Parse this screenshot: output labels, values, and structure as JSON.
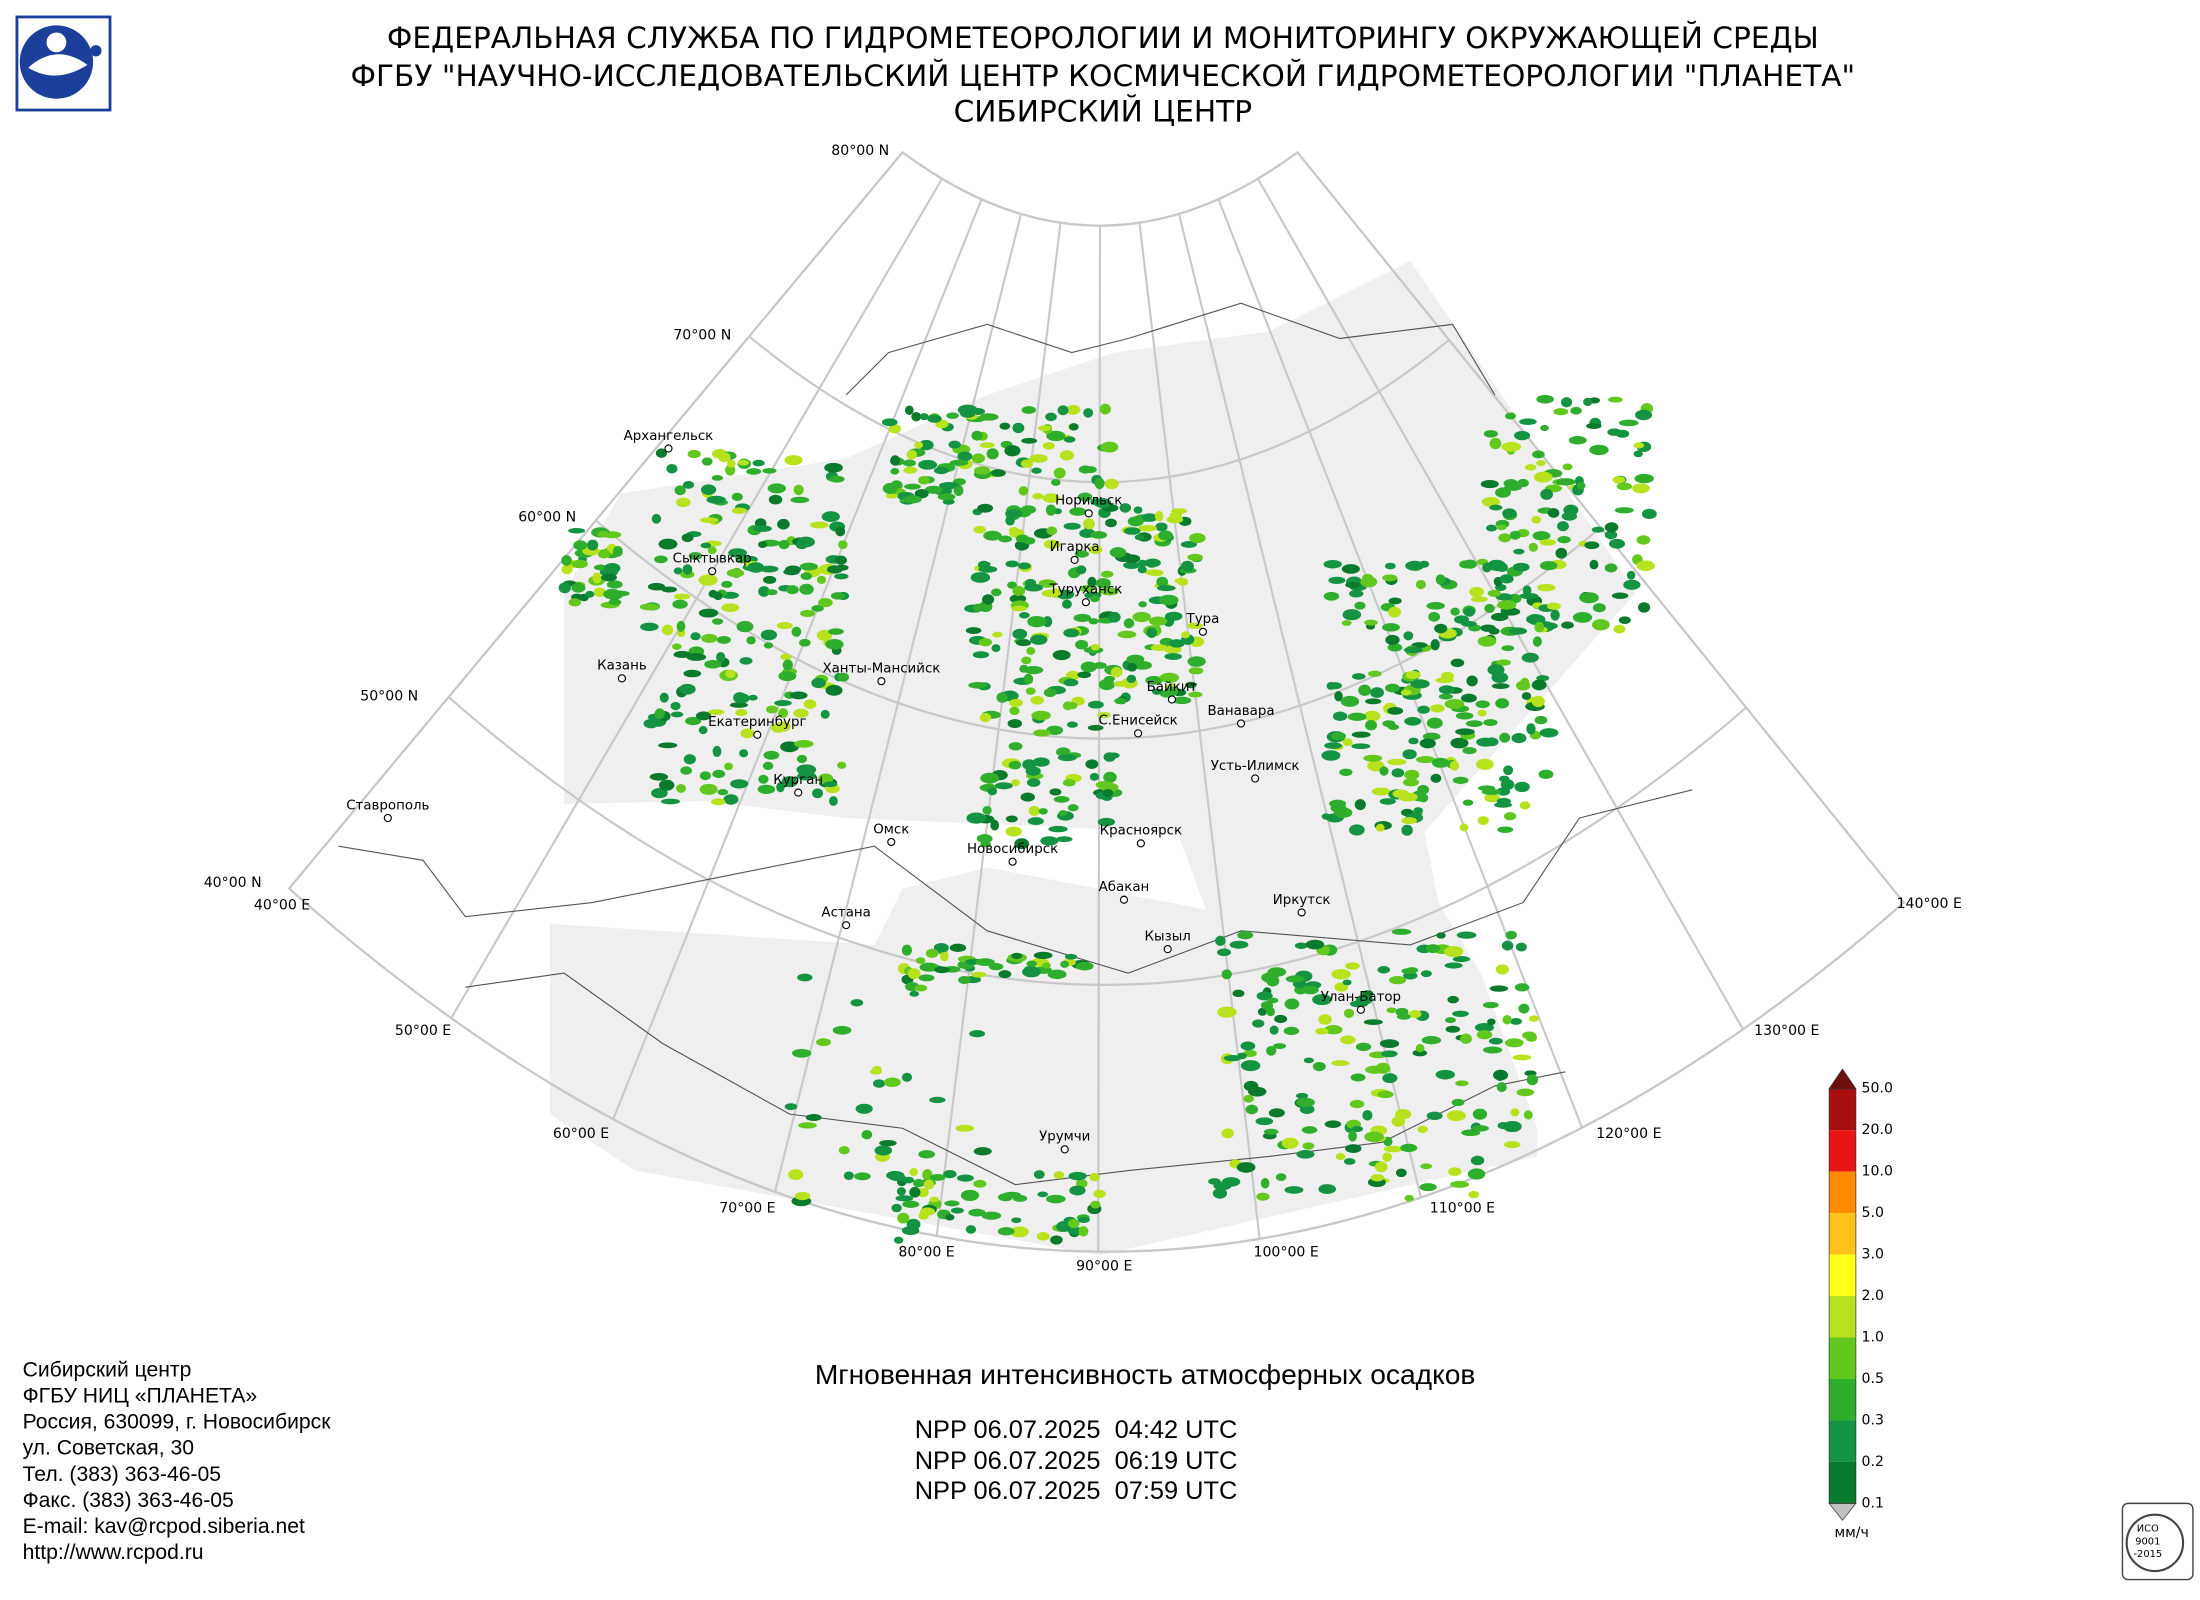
{
  "header": {
    "lines": [
      "ФЕДЕРАЛЬНАЯ СЛУЖБА ПО ГИДРОМЕТЕОРОЛОГИИ И МОНИТОРИНГУ ОКРУЖАЮЩЕЙ СРЕДЫ",
      "ФГБУ \"НАУЧНО-ИССЛЕДОВАТЕЛЬСКИЙ ЦЕНТР КОСМИЧЕСКОЙ ГИДРОМЕТЕОРОЛОГИИ \"ПЛАНЕТА\"",
      "СИБИРСКИЙ ЦЕНТР"
    ]
  },
  "map": {
    "lat_labels": [
      "80°00 N",
      "70°00 N",
      "60°00 N",
      "50°00 N",
      "40°00 N"
    ],
    "lon_labels": [
      "40°00 E",
      "50°00 E",
      "60°00 E",
      "70°00 E",
      "80°00 E",
      "90°00 E",
      "100°00 E",
      "110°00 E",
      "120°00 E",
      "130°00 E",
      "140°00 E"
    ],
    "cities": [
      "Архангельск",
      "Сыктывкар",
      "Казань",
      "Ставрополь",
      "Екатеринбург",
      "Курган",
      "Ханты-Мансийск",
      "Омск",
      "Астана",
      "Новосибирск",
      "Норильск",
      "Игарка",
      "Туруханск",
      "Тура",
      "Байкит",
      "С.Енисейск",
      "Ванавара",
      "Усть-Илимск",
      "Красноярск",
      "Абакан",
      "Кызыл",
      "Иркутск",
      "Улан-Батор",
      "Урумчи"
    ]
  },
  "product": {
    "title": "Мгновенная интенсивность атмосферных осадков",
    "passes": [
      "NPP 06.07.2025  04:42 UTC",
      "NPP 06.07.2025  06:19 UTC",
      "NPP 06.07.2025  07:59 UTC"
    ]
  },
  "address": [
    "Сибирский центр",
    "ФГБУ НИЦ «ПЛАНЕТА»",
    "Россия, 630099, г. Новосибирск",
    "ул. Советская, 30",
    "Тел. (383) 363-46-05",
    "Факс. (383) 363-46-05",
    "E-mail: kav@rcpod.siberia.net",
    "http://www.rcpod.ru"
  ],
  "colorbar": {
    "labels": [
      "50.0",
      "20.0",
      "10.0",
      "5.0",
      "3.0",
      "2.0",
      "1.0",
      "0.5",
      "0.3",
      "0.2",
      "0.1"
    ],
    "colors": [
      "#a81010",
      "#e81515",
      "#ff8a00",
      "#ffc21a",
      "#ffff1a",
      "#b8e21e",
      "#62c81e",
      "#2fae2e",
      "#149443",
      "#0a7a2c"
    ],
    "above_color": "#6e0d0d",
    "below_color": "#c0c0c0",
    "unit": "мм/ч"
  },
  "badge": {
    "lines": [
      "ИСО",
      "9001",
      "-2015"
    ]
  }
}
